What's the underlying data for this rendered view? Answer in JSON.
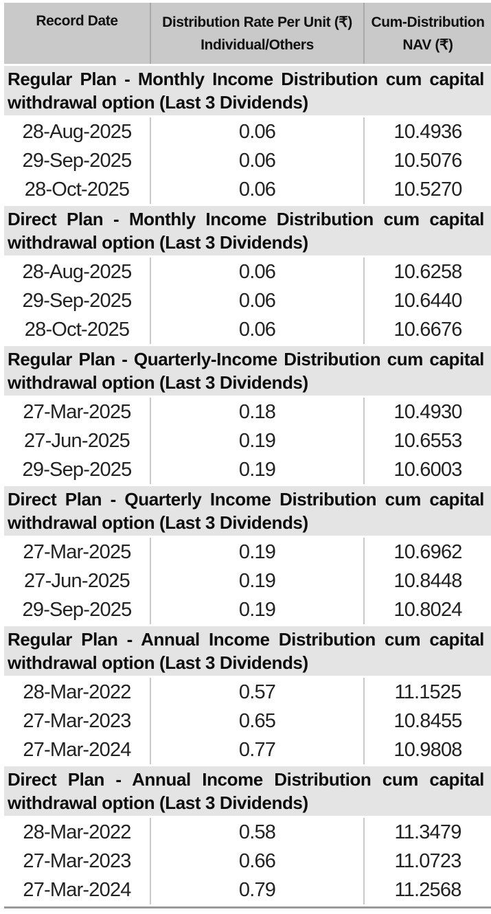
{
  "colors": {
    "header_bg": "#c9c9c9",
    "section_bg": "#e4e4e4",
    "row_bg": "#ffffff",
    "divider": "#c9c9c9",
    "header_divider": "#a9a9a9",
    "bottom_border": "#9a9a9a",
    "text": "#111111"
  },
  "header": {
    "col1": "Record Date",
    "col2_line1": "Distribution Rate Per Unit (₹)",
    "col2_line2": "Individual/Others",
    "col3_line1": "Cum-Distribution",
    "col3_line2": "NAV (₹)"
  },
  "sections": [
    {
      "title": "Regular Plan - Monthly Income Distribution cum capital withdrawal option (Last 3 Dividends)",
      "rows": [
        [
          "28-Aug-2025",
          "0.06",
          "10.4936"
        ],
        [
          "29-Sep-2025",
          "0.06",
          "10.5076"
        ],
        [
          "28-Oct-2025",
          "0.06",
          "10.5270"
        ]
      ]
    },
    {
      "title": "Direct Plan - Monthly Income Distribution cum capital withdrawal option (Last 3 Dividends)",
      "rows": [
        [
          "28-Aug-2025",
          "0.06",
          "10.6258"
        ],
        [
          "29-Sep-2025",
          "0.06",
          "10.6440"
        ],
        [
          "28-Oct-2025",
          "0.06",
          "10.6676"
        ]
      ]
    },
    {
      "title": "Regular Plan - Quarterly-Income Distribution cum capital withdrawal option (Last 3 Dividends)",
      "rows": [
        [
          "27-Mar-2025",
          "0.18",
          "10.4930"
        ],
        [
          "27-Jun-2025",
          "0.19",
          "10.6553"
        ],
        [
          "29-Sep-2025",
          "0.19",
          "10.6003"
        ]
      ]
    },
    {
      "title": "Direct Plan - Quarterly Income Distribution cum capital withdrawal option (Last 3 Dividends)",
      "rows": [
        [
          "27-Mar-2025",
          "0.19",
          "10.6962"
        ],
        [
          "27-Jun-2025",
          "0.19",
          "10.8448"
        ],
        [
          "29-Sep-2025",
          "0.19",
          "10.8024"
        ]
      ]
    },
    {
      "title": "Regular Plan - Annual Income Distribution cum capital withdrawal option (Last 3 Dividends)",
      "rows": [
        [
          "28-Mar-2022",
          "0.57",
          "11.1525"
        ],
        [
          "27-Mar-2023",
          "0.65",
          "10.8455"
        ],
        [
          "27-Mar-2024",
          "0.77",
          "10.9808"
        ]
      ]
    },
    {
      "title": "Direct Plan - Annual Income Distribution cum capital withdrawal option (Last 3 Dividends)",
      "rows": [
        [
          "28-Mar-2022",
          "0.58",
          "11.3479"
        ],
        [
          "27-Mar-2023",
          "0.66",
          "11.0723"
        ],
        [
          "27-Mar-2024",
          "0.79",
          "11.2568"
        ]
      ]
    }
  ]
}
